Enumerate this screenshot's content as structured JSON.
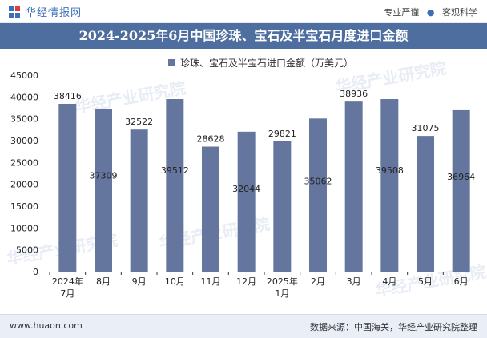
{
  "header": {
    "brand_name": "华经情报网",
    "slogan_left": "专业严谨",
    "slogan_dot": "●",
    "slogan_right": "客观科学"
  },
  "footer": {
    "website": "www.huaon.com",
    "source": "数据来源：中国海关，华经产业研究院整理"
  },
  "colors": {
    "bar": "#64769e",
    "title_bg": "#4e6e9f",
    "brand": "#3d6fb6"
  },
  "chart_data": {
    "type": "bar",
    "title": "2024-2025年6月中国珍珠、宝石及半宝石月度进口金额",
    "legend": "珍珠、宝石及半宝石进口金额（万美元）",
    "legend_position": "top-center",
    "categories": [
      "2024年\n7月",
      "8月",
      "9月",
      "10月",
      "11月",
      "12月",
      "2025年\n1月",
      "2月",
      "3月",
      "4月",
      "5月",
      "6月"
    ],
    "series": [
      {
        "name": "珍珠、宝石及半宝石进口金额（万美元）",
        "values": [
          38416,
          37309,
          32522,
          39512,
          28628,
          32044,
          29821,
          35062,
          38936,
          39508,
          31075,
          36964
        ]
      }
    ],
    "label_positions": [
      "top",
      "inside",
      "top",
      "inside",
      "top",
      "inside",
      "top",
      "inside",
      "top",
      "inside",
      "top",
      "inside"
    ],
    "ylim": [
      0,
      45000
    ],
    "yticks": [
      0,
      5000,
      10000,
      15000,
      20000,
      25000,
      30000,
      35000,
      40000,
      45000
    ],
    "xlabel": "",
    "ylabel": "",
    "grid": false
  }
}
